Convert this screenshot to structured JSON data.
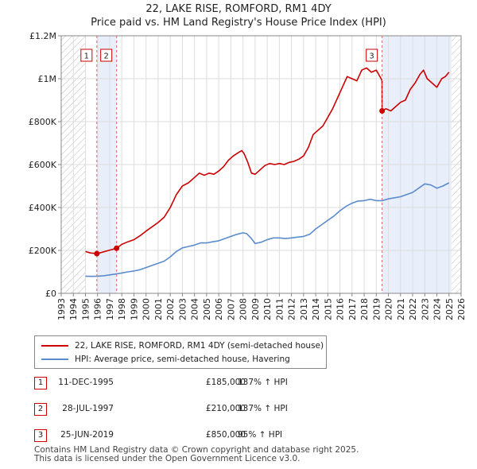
{
  "chart_data": {
    "type": "line",
    "title": "22, LAKE RISE, ROMFORD, RM1 4DY",
    "subtitle": "Price paid vs. HM Land Registry's House Price Index (HPI)",
    "xlabel": "",
    "ylabel": "",
    "xlim": [
      1993,
      2026
    ],
    "ylim": [
      0,
      1200000
    ],
    "x_ticks": [
      "1993",
      "1994",
      "1995",
      "1996",
      "1997",
      "1998",
      "1999",
      "2000",
      "2001",
      "2002",
      "2003",
      "2004",
      "2005",
      "2006",
      "2007",
      "2008",
      "2009",
      "2010",
      "2011",
      "2012",
      "2013",
      "2014",
      "2015",
      "2016",
      "2017",
      "2018",
      "2019",
      "2020",
      "2021",
      "2022",
      "2023",
      "2024",
      "2025",
      "2026"
    ],
    "y_ticks": [
      {
        "value": 0,
        "label": "£0"
      },
      {
        "value": 200000,
        "label": "£200K"
      },
      {
        "value": 400000,
        "label": "£400K"
      },
      {
        "value": 600000,
        "label": "£600K"
      },
      {
        "value": 800000,
        "label": "£800K"
      },
      {
        "value": 1000000,
        "label": "£1M"
      },
      {
        "value": 1200000,
        "label": "£1.2M"
      }
    ],
    "grid": true,
    "hatched_ranges": [
      [
        1993,
        1995.0
      ],
      [
        2025.2,
        2026
      ]
    ],
    "shaded_ranges": [
      [
        1995.95,
        1997.57
      ],
      [
        2019.48,
        2025.2
      ]
    ],
    "series": [
      {
        "name": "22, LAKE RISE, ROMFORD, RM1 4DY (semi-detached house)",
        "color": "#cc0000",
        "x": [
          1995.0,
          1995.4,
          1995.94,
          1996.3,
          1996.8,
          1997.57,
          1998.0,
          1998.5,
          1999.0,
          1999.5,
          2000.0,
          2000.5,
          2001.0,
          2001.5,
          2002.0,
          2002.5,
          2003.0,
          2003.5,
          2004.0,
          2004.4,
          2004.8,
          2005.2,
          2005.6,
          2006.0,
          2006.4,
          2006.8,
          2007.2,
          2007.6,
          2007.9,
          2008.1,
          2008.4,
          2008.7,
          2009.0,
          2009.4,
          2009.8,
          2010.2,
          2010.6,
          2011.0,
          2011.4,
          2011.8,
          2012.2,
          2012.6,
          2013.0,
          2013.4,
          2013.8,
          2014.2,
          2014.6,
          2015.0,
          2015.4,
          2015.8,
          2016.2,
          2016.6,
          2017.0,
          2017.4,
          2017.8,
          2018.2,
          2018.6,
          2019.0,
          2019.4,
          2019.47,
          2019.48,
          2019.8,
          2020.2,
          2020.6,
          2021.0,
          2021.4,
          2021.8,
          2022.2,
          2022.6,
          2022.9,
          2023.2,
          2023.6,
          2024.0,
          2024.4,
          2024.7,
          2025.0
        ],
        "y": [
          195000,
          188000,
          185000,
          190000,
          198000,
          210000,
          228000,
          240000,
          250000,
          268000,
          290000,
          310000,
          330000,
          355000,
          400000,
          460000,
          500000,
          515000,
          540000,
          560000,
          550000,
          560000,
          555000,
          570000,
          590000,
          620000,
          640000,
          655000,
          665000,
          650000,
          610000,
          560000,
          555000,
          575000,
          595000,
          605000,
          600000,
          605000,
          600000,
          610000,
          615000,
          625000,
          640000,
          680000,
          740000,
          760000,
          780000,
          820000,
          860000,
          910000,
          960000,
          1010000,
          1000000,
          990000,
          1040000,
          1050000,
          1030000,
          1040000,
          1000000,
          990000,
          850000,
          860000,
          850000,
          870000,
          890000,
          900000,
          950000,
          980000,
          1020000,
          1040000,
          1000000,
          980000,
          960000,
          1000000,
          1010000,
          1030000
        ],
        "markers": [
          {
            "x": 1995.94,
            "y": 185000,
            "label": "1"
          },
          {
            "x": 1997.57,
            "y": 210000,
            "label": "2"
          },
          {
            "x": 2019.48,
            "y": 850000,
            "label": "3"
          }
        ]
      },
      {
        "name": "HPI: Average price, semi-detached house, Havering",
        "color": "#5b8ccc",
        "x": [
          1995.0,
          1995.5,
          1996.0,
          1996.5,
          1997.0,
          1997.5,
          1998.0,
          1998.5,
          1999.0,
          1999.5,
          2000.0,
          2000.5,
          2001.0,
          2001.5,
          2002.0,
          2002.5,
          2003.0,
          2003.5,
          2004.0,
          2004.5,
          2005.0,
          2005.5,
          2006.0,
          2006.5,
          2007.0,
          2007.5,
          2008.0,
          2008.3,
          2008.7,
          2009.0,
          2009.5,
          2010.0,
          2010.5,
          2011.0,
          2011.5,
          2012.0,
          2012.5,
          2013.0,
          2013.5,
          2014.0,
          2014.5,
          2015.0,
          2015.5,
          2016.0,
          2016.5,
          2017.0,
          2017.5,
          2018.0,
          2018.5,
          2019.0,
          2019.5,
          2020.0,
          2020.5,
          2021.0,
          2021.5,
          2022.0,
          2022.5,
          2023.0,
          2023.5,
          2024.0,
          2024.5,
          2025.0
        ],
        "y": [
          80000,
          79000,
          80000,
          82000,
          86000,
          90000,
          95000,
          100000,
          104000,
          110000,
          120000,
          130000,
          140000,
          150000,
          170000,
          195000,
          212000,
          218000,
          225000,
          235000,
          235000,
          240000,
          245000,
          255000,
          265000,
          275000,
          282000,
          278000,
          255000,
          232000,
          238000,
          250000,
          258000,
          258000,
          255000,
          258000,
          262000,
          265000,
          275000,
          300000,
          320000,
          340000,
          360000,
          385000,
          405000,
          420000,
          430000,
          432000,
          438000,
          432000,
          432000,
          440000,
          445000,
          450000,
          460000,
          470000,
          490000,
          510000,
          505000,
          490000,
          500000,
          515000
        ]
      }
    ]
  },
  "legend": {
    "entries": [
      {
        "label": "22, LAKE RISE, ROMFORD, RM1 4DY (semi-detached house)",
        "color": "#cc0000"
      },
      {
        "label": "HPI: Average price, semi-detached house, Havering",
        "color": "#5b8ccc"
      }
    ]
  },
  "transactions": [
    {
      "id": "1",
      "date": "11-DEC-1995",
      "price": "£185,000",
      "hpi": "137% ↑ HPI"
    },
    {
      "id": "2",
      "date": "28-JUL-1997",
      "price": "£210,000",
      "hpi": "137% ↑ HPI"
    },
    {
      "id": "3",
      "date": "25-JUN-2019",
      "price": "£850,000",
      "hpi": "95% ↑ HPI"
    }
  ],
  "footer": {
    "line1": "Contains HM Land Registry data © Crown copyright and database right 2025.",
    "line2": "This data is licensed under the Open Government Licence v3.0."
  }
}
